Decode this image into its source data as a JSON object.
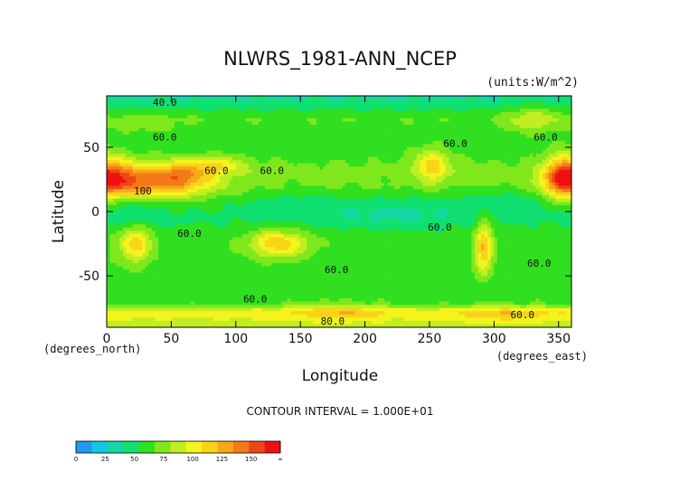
{
  "chart_data": {
    "type": "heatmap",
    "title": "NLWRS_1981-ANN_NCEP",
    "units_label": "(units:W/m^2)",
    "xlabel": "Longitude",
    "ylabel": "Latitude",
    "x_unit_note": "(degrees_east)",
    "y_unit_note": "(degrees_north)",
    "xlim": [
      0,
      360
    ],
    "ylim": [
      -90,
      90
    ],
    "x_ticks": [
      0,
      50,
      100,
      150,
      200,
      250,
      300,
      350
    ],
    "y_ticks": [
      -50,
      0,
      50
    ],
    "contour_interval_text": "CONTOUR INTERVAL = 1.000E+01",
    "contour_labels": [
      {
        "text": "40.0",
        "x": 45,
        "y": 85
      },
      {
        "text": "60.0",
        "x": 45,
        "y": 58
      },
      {
        "text": "60.0",
        "x": 85,
        "y": 32
      },
      {
        "text": "60.0",
        "x": 128,
        "y": 32
      },
      {
        "text": "100",
        "x": 28,
        "y": 16
      },
      {
        "text": "60.0",
        "x": 270,
        "y": 53
      },
      {
        "text": "60.0",
        "x": 340,
        "y": 58
      },
      {
        "text": "60.0",
        "x": 64,
        "y": -17
      },
      {
        "text": "60.0",
        "x": 258,
        "y": -12
      },
      {
        "text": "60.0",
        "x": 178,
        "y": -45
      },
      {
        "text": "60.0",
        "x": 335,
        "y": -40
      },
      {
        "text": "60.0",
        "x": 115,
        "y": -68
      },
      {
        "text": "80.0",
        "x": 175,
        "y": -85
      },
      {
        "text": "60.0",
        "x": 322,
        "y": -80
      }
    ],
    "colorbar": {
      "ticks": [
        "0",
        "25",
        "50",
        "75",
        "100",
        "125",
        "150",
        "∞"
      ],
      "colors": [
        "#1e9af0",
        "#12c8e0",
        "#14d6a8",
        "#10e070",
        "#30e020",
        "#7ee81c",
        "#c0ee20",
        "#f4f41c",
        "#f8d418",
        "#f8a818",
        "#f47a18",
        "#ee4614",
        "#f01010"
      ]
    },
    "value_field": {
      "base": 55,
      "lat_profile": [
        [
          -90,
          78
        ],
        [
          -78,
          95
        ],
        [
          -72,
          60
        ],
        [
          -60,
          55
        ],
        [
          -40,
          58
        ],
        [
          -20,
          57
        ],
        [
          -5,
          48
        ],
        [
          8,
          52
        ],
        [
          20,
          64
        ],
        [
          32,
          66
        ],
        [
          45,
          58
        ],
        [
          60,
          55
        ],
        [
          72,
          62
        ],
        [
          85,
          40
        ],
        [
          90,
          35
        ]
      ],
      "features": [
        {
          "lon": 35,
          "lat": 22,
          "sx": 32,
          "sy": 9,
          "amp": 58
        },
        {
          "lon": 58,
          "lat": 30,
          "sx": 16,
          "sy": 7,
          "amp": 35
        },
        {
          "lon": 88,
          "lat": 36,
          "sx": 14,
          "sy": 5,
          "amp": 30
        },
        {
          "lon": 8,
          "lat": 28,
          "sx": 14,
          "sy": 10,
          "amp": 40
        },
        {
          "lon": 252,
          "lat": 36,
          "sx": 10,
          "sy": 9,
          "amp": 42
        },
        {
          "lon": 352,
          "lat": 27,
          "sx": 10,
          "sy": 12,
          "amp": 55
        },
        {
          "lon": 22,
          "lat": -25,
          "sx": 9,
          "sy": 10,
          "amp": 48
        },
        {
          "lon": 133,
          "lat": -25,
          "sx": 16,
          "sy": 7,
          "amp": 52
        },
        {
          "lon": 292,
          "lat": -28,
          "sx": 5,
          "sy": 14,
          "amp": 55
        },
        {
          "lon": 230,
          "lat": -2,
          "sx": 40,
          "sy": 8,
          "amp": -14
        },
        {
          "lon": 20,
          "lat": -2,
          "sx": 20,
          "sy": 8,
          "amp": -12
        },
        {
          "lon": 150,
          "lat": 5,
          "sx": 28,
          "sy": 7,
          "amp": -10
        },
        {
          "lon": 310,
          "lat": 10,
          "sx": 25,
          "sy": 6,
          "amp": -9
        },
        {
          "lon": 330,
          "lat": 72,
          "sx": 15,
          "sy": 8,
          "amp": 25
        },
        {
          "lon": 30,
          "lat": 68,
          "sx": 20,
          "sy": 6,
          "amp": 10
        },
        {
          "lon": 180,
          "lat": -78,
          "sx": 25,
          "sy": 5,
          "amp": 20
        },
        {
          "lon": 310,
          "lat": -80,
          "sx": 25,
          "sy": 5,
          "amp": 18
        }
      ]
    }
  }
}
